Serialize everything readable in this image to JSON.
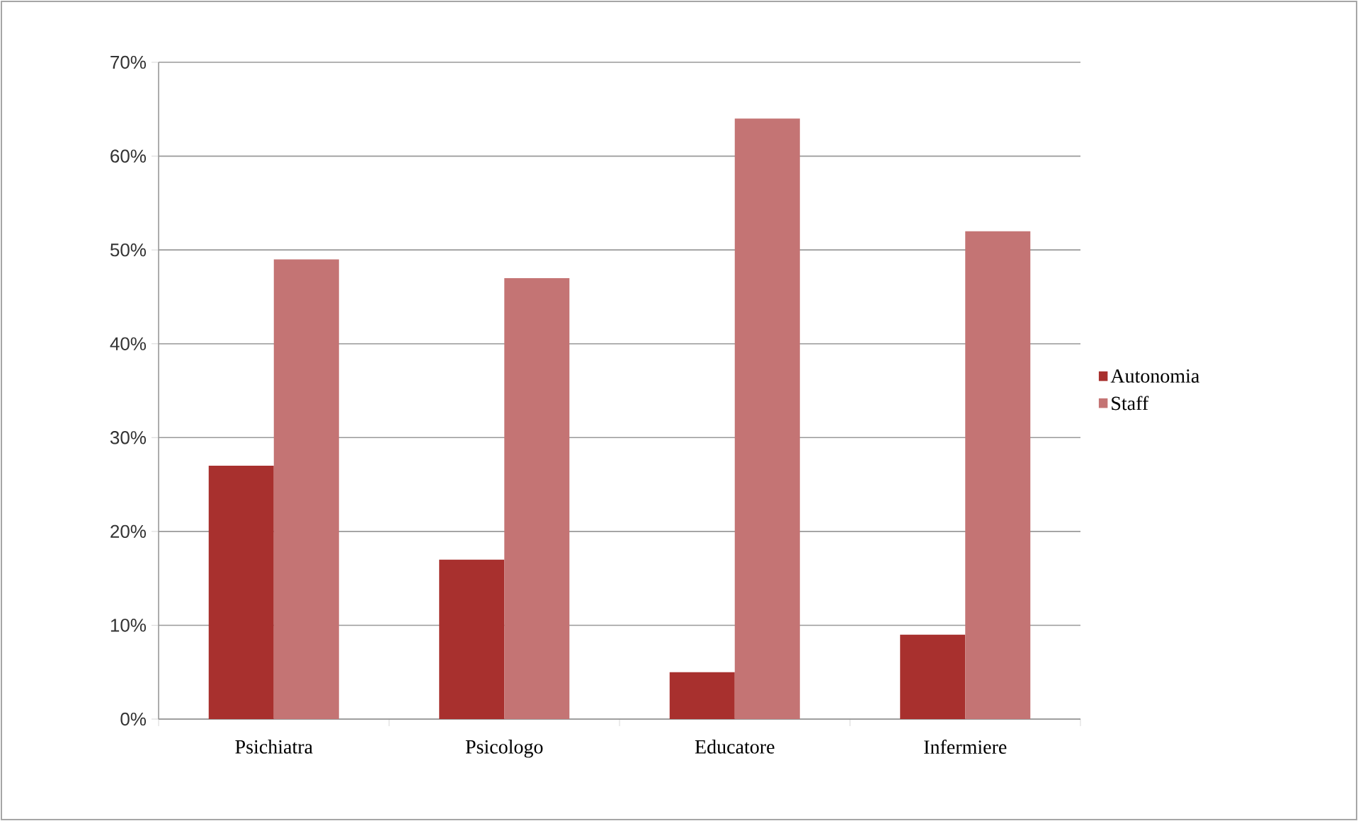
{
  "chart_data": {
    "type": "bar",
    "categories": [
      "Psichiatra",
      "Psicologo",
      "Educatore",
      "Infermiere"
    ],
    "series": [
      {
        "name": "Autonomia",
        "color": "#a8302e",
        "values": [
          27,
          17,
          5,
          9
        ]
      },
      {
        "name": "Staff",
        "color": "#c47474",
        "values": [
          49,
          47,
          64,
          52
        ]
      }
    ],
    "ylim": [
      0,
      70
    ],
    "yticks": [
      {
        "value": 0,
        "label": "0%"
      },
      {
        "value": 10,
        "label": "10%"
      },
      {
        "value": 20,
        "label": "20%"
      },
      {
        "value": 30,
        "label": "30%"
      },
      {
        "value": 40,
        "label": "40%"
      },
      {
        "value": 50,
        "label": "50%"
      },
      {
        "value": 60,
        "label": "60%"
      },
      {
        "value": 70,
        "label": "70%"
      }
    ],
    "grid": "y",
    "legend": "right"
  }
}
